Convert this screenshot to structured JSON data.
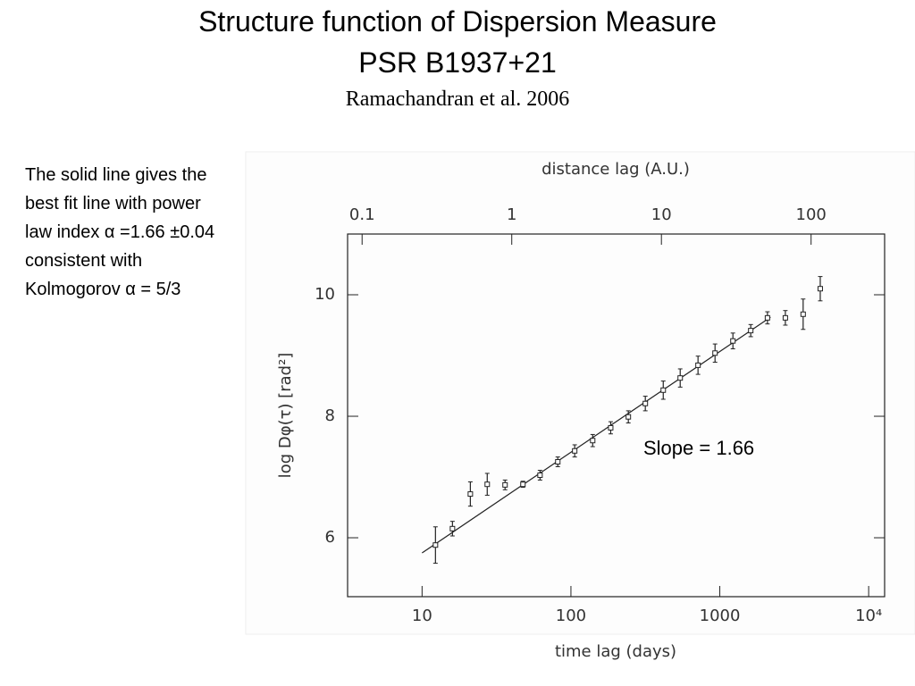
{
  "title": "Structure function of Dispersion Measure",
  "subtitle": "PSR B1937+21",
  "source": "Ramachandran et al. 2006",
  "note_lines": [
    "The solid line gives the",
    "best fit line with power",
    "law index  α =1.66 ±0.04",
    "consistent with",
    "Kolmogorov α = 5/3"
  ],
  "chart_data": {
    "type": "errorbar",
    "xlabel": "time lag (days)",
    "x2label": "distance lag (A.U.)",
    "ylabel": "log Dφ(τ) [rad²]",
    "annotation": "Slope = 1.66",
    "xscale": "log",
    "xlim": [
      3.16,
      12800
    ],
    "xticks": [
      10,
      100,
      1000,
      {
        "value": 10000,
        "label": "10⁴"
      }
    ],
    "x2lim": [
      0.08,
      310
    ],
    "x2ticks": [
      0.1,
      1,
      10,
      100
    ],
    "ylim": [
      5.03,
      11
    ],
    "yticks": [
      6,
      8,
      10
    ],
    "color": "#222222",
    "x": [
      12.3,
      16,
      21.1,
      27.4,
      36.1,
      47.6,
      62,
      81.6,
      106,
      140,
      185,
      243,
      316,
      417,
      542,
      714,
      929,
      1225,
      1614,
      2090,
      2757,
      3630,
      4730
    ],
    "values": [
      5.88,
      6.15,
      6.72,
      6.88,
      6.87,
      6.88,
      7.03,
      7.25,
      7.43,
      7.6,
      7.81,
      7.99,
      8.21,
      8.43,
      8.63,
      8.84,
      9.04,
      9.24,
      9.41,
      9.62,
      9.62,
      9.68,
      10.1
    ],
    "errors": [
      0.3,
      0.12,
      0.2,
      0.18,
      0.08,
      0.05,
      0.08,
      0.08,
      0.1,
      0.1,
      0.1,
      0.1,
      0.12,
      0.15,
      0.15,
      0.15,
      0.15,
      0.13,
      0.1,
      0.1,
      0.12,
      0.25,
      0.2
    ],
    "fit": {
      "x": [
        10,
        2190
      ],
      "values": [
        5.75,
        9.63
      ]
    }
  }
}
